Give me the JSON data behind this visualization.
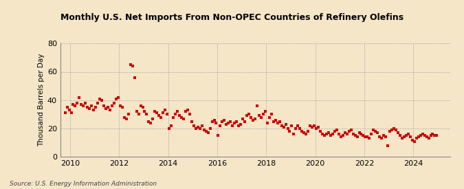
{
  "title": "Monthly U.S. Net Imports From Non-OPEC Countries of Refinery Olefins",
  "ylabel": "Thousand Barrels per Day",
  "source_text": "Source: U.S. Energy Information Administration",
  "background_color": "#f5e6c8",
  "plot_bg_color": "#f5e6c8",
  "marker_color": "#cc0000",
  "grid_color": "#aaaaaa",
  "ylim": [
    0,
    80
  ],
  "yticks": [
    0,
    20,
    40,
    60,
    80
  ],
  "xlim_start": 2009.6,
  "xlim_end": 2025.5,
  "xticks": [
    2010,
    2012,
    2014,
    2016,
    2018,
    2020,
    2022,
    2024
  ],
  "data": [
    [
      2009,
      10,
      31
    ],
    [
      2009,
      11,
      35
    ],
    [
      2009,
      12,
      33
    ],
    [
      2010,
      1,
      31
    ],
    [
      2010,
      2,
      37
    ],
    [
      2010,
      3,
      36
    ],
    [
      2010,
      4,
      38
    ],
    [
      2010,
      5,
      42
    ],
    [
      2010,
      6,
      37
    ],
    [
      2010,
      7,
      36
    ],
    [
      2010,
      8,
      38
    ],
    [
      2010,
      9,
      35
    ],
    [
      2010,
      10,
      34
    ],
    [
      2010,
      11,
      36
    ],
    [
      2010,
      12,
      33
    ],
    [
      2011,
      1,
      35
    ],
    [
      2011,
      2,
      38
    ],
    [
      2011,
      3,
      41
    ],
    [
      2011,
      4,
      40
    ],
    [
      2011,
      5,
      36
    ],
    [
      2011,
      6,
      34
    ],
    [
      2011,
      7,
      35
    ],
    [
      2011,
      8,
      33
    ],
    [
      2011,
      9,
      36
    ],
    [
      2011,
      10,
      38
    ],
    [
      2011,
      11,
      41
    ],
    [
      2011,
      12,
      42
    ],
    [
      2012,
      1,
      36
    ],
    [
      2012,
      2,
      35
    ],
    [
      2012,
      3,
      28
    ],
    [
      2012,
      4,
      27
    ],
    [
      2012,
      5,
      30
    ],
    [
      2012,
      6,
      65
    ],
    [
      2012,
      7,
      64
    ],
    [
      2012,
      8,
      56
    ],
    [
      2012,
      9,
      32
    ],
    [
      2012,
      10,
      30
    ],
    [
      2012,
      11,
      36
    ],
    [
      2012,
      12,
      35
    ],
    [
      2013,
      1,
      32
    ],
    [
      2013,
      2,
      30
    ],
    [
      2013,
      3,
      25
    ],
    [
      2013,
      4,
      24
    ],
    [
      2013,
      5,
      27
    ],
    [
      2013,
      6,
      32
    ],
    [
      2013,
      7,
      31
    ],
    [
      2013,
      8,
      29
    ],
    [
      2013,
      9,
      28
    ],
    [
      2013,
      10,
      31
    ],
    [
      2013,
      11,
      33
    ],
    [
      2013,
      12,
      30
    ],
    [
      2014,
      1,
      20
    ],
    [
      2014,
      2,
      22
    ],
    [
      2014,
      3,
      28
    ],
    [
      2014,
      4,
      30
    ],
    [
      2014,
      5,
      32
    ],
    [
      2014,
      6,
      29
    ],
    [
      2014,
      7,
      28
    ],
    [
      2014,
      8,
      27
    ],
    [
      2014,
      9,
      32
    ],
    [
      2014,
      10,
      33
    ],
    [
      2014,
      11,
      30
    ],
    [
      2014,
      12,
      25
    ],
    [
      2015,
      1,
      22
    ],
    [
      2015,
      2,
      20
    ],
    [
      2015,
      3,
      21
    ],
    [
      2015,
      4,
      20
    ],
    [
      2015,
      5,
      22
    ],
    [
      2015,
      6,
      19
    ],
    [
      2015,
      7,
      18
    ],
    [
      2015,
      8,
      17
    ],
    [
      2015,
      9,
      20
    ],
    [
      2015,
      10,
      25
    ],
    [
      2015,
      11,
      26
    ],
    [
      2015,
      12,
      24
    ],
    [
      2016,
      1,
      15
    ],
    [
      2016,
      2,
      22
    ],
    [
      2016,
      3,
      25
    ],
    [
      2016,
      4,
      26
    ],
    [
      2016,
      5,
      23
    ],
    [
      2016,
      6,
      24
    ],
    [
      2016,
      7,
      25
    ],
    [
      2016,
      8,
      22
    ],
    [
      2016,
      9,
      24
    ],
    [
      2016,
      10,
      25
    ],
    [
      2016,
      11,
      22
    ],
    [
      2016,
      12,
      23
    ],
    [
      2017,
      1,
      27
    ],
    [
      2017,
      2,
      25
    ],
    [
      2017,
      3,
      29
    ],
    [
      2017,
      4,
      30
    ],
    [
      2017,
      5,
      28
    ],
    [
      2017,
      6,
      26
    ],
    [
      2017,
      7,
      27
    ],
    [
      2017,
      8,
      36
    ],
    [
      2017,
      9,
      29
    ],
    [
      2017,
      10,
      28
    ],
    [
      2017,
      11,
      30
    ],
    [
      2017,
      12,
      32
    ],
    [
      2018,
      1,
      24
    ],
    [
      2018,
      2,
      28
    ],
    [
      2018,
      3,
      30
    ],
    [
      2018,
      4,
      25
    ],
    [
      2018,
      5,
      26
    ],
    [
      2018,
      6,
      24
    ],
    [
      2018,
      7,
      25
    ],
    [
      2018,
      8,
      22
    ],
    [
      2018,
      9,
      21
    ],
    [
      2018,
      10,
      23
    ],
    [
      2018,
      11,
      20
    ],
    [
      2018,
      12,
      18
    ],
    [
      2019,
      1,
      22
    ],
    [
      2019,
      2,
      16
    ],
    [
      2019,
      3,
      20
    ],
    [
      2019,
      4,
      22
    ],
    [
      2019,
      5,
      20
    ],
    [
      2019,
      6,
      18
    ],
    [
      2019,
      7,
      17
    ],
    [
      2019,
      8,
      16
    ],
    [
      2019,
      9,
      18
    ],
    [
      2019,
      10,
      22
    ],
    [
      2019,
      11,
      21
    ],
    [
      2019,
      12,
      22
    ],
    [
      2020,
      1,
      20
    ],
    [
      2020,
      2,
      21
    ],
    [
      2020,
      3,
      18
    ],
    [
      2020,
      4,
      16
    ],
    [
      2020,
      5,
      15
    ],
    [
      2020,
      6,
      16
    ],
    [
      2020,
      7,
      17
    ],
    [
      2020,
      8,
      15
    ],
    [
      2020,
      9,
      16
    ],
    [
      2020,
      10,
      18
    ],
    [
      2020,
      11,
      19
    ],
    [
      2020,
      12,
      16
    ],
    [
      2021,
      1,
      14
    ],
    [
      2021,
      2,
      15
    ],
    [
      2021,
      3,
      17
    ],
    [
      2021,
      4,
      16
    ],
    [
      2021,
      5,
      18
    ],
    [
      2021,
      6,
      19
    ],
    [
      2021,
      7,
      16
    ],
    [
      2021,
      8,
      15
    ],
    [
      2021,
      9,
      14
    ],
    [
      2021,
      10,
      17
    ],
    [
      2021,
      11,
      16
    ],
    [
      2021,
      12,
      15
    ],
    [
      2022,
      1,
      14
    ],
    [
      2022,
      2,
      14
    ],
    [
      2022,
      3,
      13
    ],
    [
      2022,
      4,
      16
    ],
    [
      2022,
      5,
      19
    ],
    [
      2022,
      6,
      18
    ],
    [
      2022,
      7,
      17
    ],
    [
      2022,
      8,
      14
    ],
    [
      2022,
      9,
      13
    ],
    [
      2022,
      10,
      15
    ],
    [
      2022,
      11,
      14
    ],
    [
      2022,
      12,
      8
    ],
    [
      2023,
      1,
      18
    ],
    [
      2023,
      2,
      19
    ],
    [
      2023,
      3,
      20
    ],
    [
      2023,
      4,
      19
    ],
    [
      2023,
      5,
      17
    ],
    [
      2023,
      6,
      15
    ],
    [
      2023,
      7,
      13
    ],
    [
      2023,
      8,
      14
    ],
    [
      2023,
      9,
      15
    ],
    [
      2023,
      10,
      16
    ],
    [
      2023,
      11,
      14
    ],
    [
      2023,
      12,
      12
    ],
    [
      2024,
      1,
      11
    ],
    [
      2024,
      2,
      13
    ],
    [
      2024,
      3,
      14
    ],
    [
      2024,
      4,
      15
    ],
    [
      2024,
      5,
      16
    ],
    [
      2024,
      6,
      15
    ],
    [
      2024,
      7,
      14
    ],
    [
      2024,
      8,
      13
    ],
    [
      2024,
      9,
      15
    ],
    [
      2024,
      10,
      16
    ],
    [
      2024,
      11,
      15
    ],
    [
      2024,
      12,
      15
    ]
  ]
}
